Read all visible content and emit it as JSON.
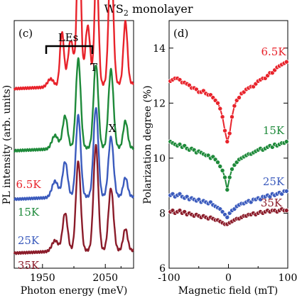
{
  "figure_title": "WS",
  "figure_title_sub": "2",
  "figure_title_rest": " monolayer",
  "chart_data": [
    {
      "type": "line",
      "panel": "(c)",
      "xlabel": "Photon energy (meV)",
      "ylabel": "PL intensity (arb. units)",
      "xlim": [
        1905,
        2095
      ],
      "x_ticks": [
        1950,
        2050
      ],
      "x_tick_labels": [
        "1950",
        "2050"
      ],
      "annotations": [
        {
          "text": "LEs"
        },
        {
          "text": "T"
        },
        {
          "text": "X"
        }
      ],
      "series": [
        {
          "name": "6.5K",
          "color": "#e8232b",
          "offset": 0.6,
          "baseline": [
            0.05,
            0.06,
            0.07
          ],
          "peaks": [
            {
              "x": 1963,
              "a": 0.03,
              "w": 5
            },
            {
              "x": 1981,
              "a": 0.2,
              "w": 3.2
            },
            {
              "x": 1995,
              "a": 0.17,
              "w": 4.5
            },
            {
              "x": 2008,
              "a": 0.58,
              "w": 3.2
            },
            {
              "x": 2022,
              "a": 0.22,
              "w": 4
            },
            {
              "x": 2036,
              "a": 0.45,
              "w": 3.1
            },
            {
              "x": 2059,
              "a": 0.49,
              "w": 3.6
            },
            {
              "x": 2082,
              "a": 0.23,
              "w": 3.2
            }
          ]
        },
        {
          "name": "15K",
          "color": "#1e8a3a",
          "offset": 0.4,
          "baseline": [
            0.02,
            0.03,
            0.03
          ],
          "peaks": [
            {
              "x": 1970,
              "a": 0.05,
              "w": 5
            },
            {
              "x": 1986,
              "a": 0.12,
              "w": 4
            },
            {
              "x": 2007,
              "a": 0.33,
              "w": 3.8
            },
            {
              "x": 2035,
              "a": 0.31,
              "w": 3.8
            },
            {
              "x": 2059,
              "a": 0.29,
              "w": 4
            },
            {
              "x": 2082,
              "a": 0.1,
              "w": 3.5
            }
          ]
        },
        {
          "name": "25K",
          "color": "#3b5bbd",
          "offset": 0.22,
          "baseline": [
            0.02,
            0.03,
            0.03
          ],
          "peaks": [
            {
              "x": 1970,
              "a": 0.06,
              "w": 5
            },
            {
              "x": 1986,
              "a": 0.13,
              "w": 4
            },
            {
              "x": 2007,
              "a": 0.3,
              "w": 3.8
            },
            {
              "x": 2035,
              "a": 0.33,
              "w": 3.8
            },
            {
              "x": 2059,
              "a": 0.22,
              "w": 4
            },
            {
              "x": 2082,
              "a": 0.07,
              "w": 3.5
            }
          ]
        },
        {
          "name": "35K",
          "color": "#8b1c2a",
          "offset": 0.02,
          "baseline": [
            0.02,
            0.03,
            0.03
          ],
          "peaks": [
            {
              "x": 1970,
              "a": 0.04,
              "w": 5
            },
            {
              "x": 1986,
              "a": 0.14,
              "w": 4
            },
            {
              "x": 2007,
              "a": 0.33,
              "w": 3.8
            },
            {
              "x": 2035,
              "a": 0.39,
              "w": 3.8
            },
            {
              "x": 2059,
              "a": 0.23,
              "w": 4
            },
            {
              "x": 2082,
              "a": 0.08,
              "w": 3.5
            }
          ]
        }
      ]
    },
    {
      "type": "scatter",
      "panel": "(d)",
      "xlabel": "Magnetic field (mT)",
      "ylabel": "Polarization degree (%)",
      "xlim": [
        -100,
        100
      ],
      "ylim": [
        6,
        15
      ],
      "x_ticks": [
        -100,
        0,
        100
      ],
      "x_tick_labels": [
        "-100",
        "0",
        "100"
      ],
      "y_ticks": [
        6,
        8,
        10,
        12,
        14
      ],
      "y_tick_labels": [
        "6",
        "8",
        "10",
        "12",
        "14"
      ],
      "series": [
        {
          "name": "6.5K",
          "color": "#e8232b",
          "x": [
            -98,
            -94,
            -90,
            -86,
            -82,
            -78,
            -74,
            -70,
            -66,
            -62,
            -58,
            -54,
            -50,
            -46,
            -42,
            -38,
            -34,
            -30,
            -26,
            -22,
            -18,
            -14,
            -10,
            -6,
            -2,
            2,
            6,
            10,
            14,
            18,
            22,
            26,
            30,
            34,
            38,
            42,
            46,
            50,
            54,
            58,
            62,
            66,
            70,
            74,
            78,
            82,
            86,
            90,
            94,
            98
          ],
          "y": [
            12.8,
            12.85,
            12.9,
            12.9,
            12.85,
            12.75,
            12.75,
            12.7,
            12.65,
            12.55,
            12.55,
            12.5,
            12.4,
            12.4,
            12.45,
            12.35,
            12.3,
            12.3,
            12.2,
            12.1,
            12.0,
            11.8,
            11.5,
            11.0,
            10.6,
            10.9,
            11.5,
            11.9,
            12.1,
            12.2,
            12.35,
            12.4,
            12.5,
            12.55,
            12.6,
            12.6,
            12.7,
            12.8,
            12.85,
            12.9,
            12.9,
            13.0,
            13.1,
            13.1,
            13.2,
            13.3,
            13.35,
            13.4,
            13.45,
            13.5
          ]
        },
        {
          "name": "15K",
          "color": "#1e8a3a",
          "x": [
            -98,
            -94,
            -90,
            -86,
            -82,
            -78,
            -74,
            -70,
            -66,
            -62,
            -58,
            -54,
            -50,
            -46,
            -42,
            -38,
            -34,
            -30,
            -26,
            -22,
            -18,
            -14,
            -10,
            -6,
            -2,
            2,
            6,
            10,
            14,
            18,
            22,
            26,
            30,
            34,
            38,
            42,
            46,
            50,
            54,
            58,
            62,
            66,
            70,
            74,
            78,
            82,
            86,
            90,
            94,
            98
          ],
          "y": [
            10.6,
            10.55,
            10.5,
            10.45,
            10.5,
            10.4,
            10.45,
            10.35,
            10.3,
            10.35,
            10.3,
            10.2,
            10.25,
            10.2,
            10.15,
            10.1,
            10.1,
            10.0,
            10.05,
            9.95,
            9.85,
            9.7,
            9.55,
            9.3,
            8.85,
            9.3,
            9.6,
            9.75,
            9.85,
            9.95,
            10.0,
            10.05,
            10.1,
            10.15,
            10.15,
            10.2,
            10.25,
            10.3,
            10.35,
            10.3,
            10.35,
            10.4,
            10.45,
            10.4,
            10.5,
            10.45,
            10.5,
            10.55,
            10.55,
            10.6
          ]
        },
        {
          "name": "25K",
          "color": "#3b5bbd",
          "x": [
            -98,
            -94,
            -90,
            -86,
            -82,
            -78,
            -74,
            -70,
            -66,
            -62,
            -58,
            -54,
            -50,
            -46,
            -42,
            -38,
            -34,
            -30,
            -26,
            -22,
            -18,
            -14,
            -10,
            -6,
            -2,
            2,
            6,
            10,
            14,
            18,
            22,
            26,
            30,
            34,
            38,
            42,
            46,
            50,
            54,
            58,
            62,
            66,
            70,
            74,
            78,
            82,
            86,
            90,
            94,
            98
          ],
          "y": [
            8.65,
            8.7,
            8.6,
            8.65,
            8.7,
            8.6,
            8.55,
            8.6,
            8.5,
            8.55,
            8.5,
            8.45,
            8.5,
            8.4,
            8.45,
            8.4,
            8.35,
            8.4,
            8.3,
            8.25,
            8.2,
            8.15,
            8.05,
            7.95,
            7.85,
            8.0,
            8.1,
            8.15,
            8.25,
            8.3,
            8.35,
            8.35,
            8.4,
            8.45,
            8.4,
            8.5,
            8.5,
            8.55,
            8.5,
            8.6,
            8.6,
            8.65,
            8.6,
            8.7,
            8.65,
            8.7,
            8.75,
            8.7,
            8.8,
            8.8
          ]
        },
        {
          "name": "35K",
          "color": "#8b1c2a",
          "x": [
            -98,
            -94,
            -90,
            -86,
            -82,
            -78,
            -74,
            -70,
            -66,
            -62,
            -58,
            -54,
            -50,
            -46,
            -42,
            -38,
            -34,
            -30,
            -26,
            -22,
            -18,
            -14,
            -10,
            -6,
            -2,
            2,
            6,
            10,
            14,
            18,
            22,
            26,
            30,
            34,
            38,
            42,
            46,
            50,
            54,
            58,
            62,
            66,
            70,
            74,
            78,
            82,
            86,
            90,
            94,
            98
          ],
          "y": [
            8.05,
            8.1,
            8.0,
            8.05,
            8.1,
            8.0,
            8.05,
            7.95,
            8.0,
            7.95,
            7.9,
            7.95,
            7.9,
            7.85,
            7.9,
            7.85,
            7.8,
            7.85,
            7.8,
            7.75,
            7.75,
            7.7,
            7.65,
            7.6,
            7.6,
            7.65,
            7.7,
            7.75,
            7.8,
            7.8,
            7.85,
            7.9,
            7.9,
            7.95,
            7.95,
            8.0,
            7.95,
            8.0,
            8.05,
            8.0,
            8.05,
            8.1,
            8.05,
            8.1,
            8.1,
            8.05,
            8.1,
            8.15,
            8.1,
            8.1
          ]
        }
      ]
    }
  ]
}
